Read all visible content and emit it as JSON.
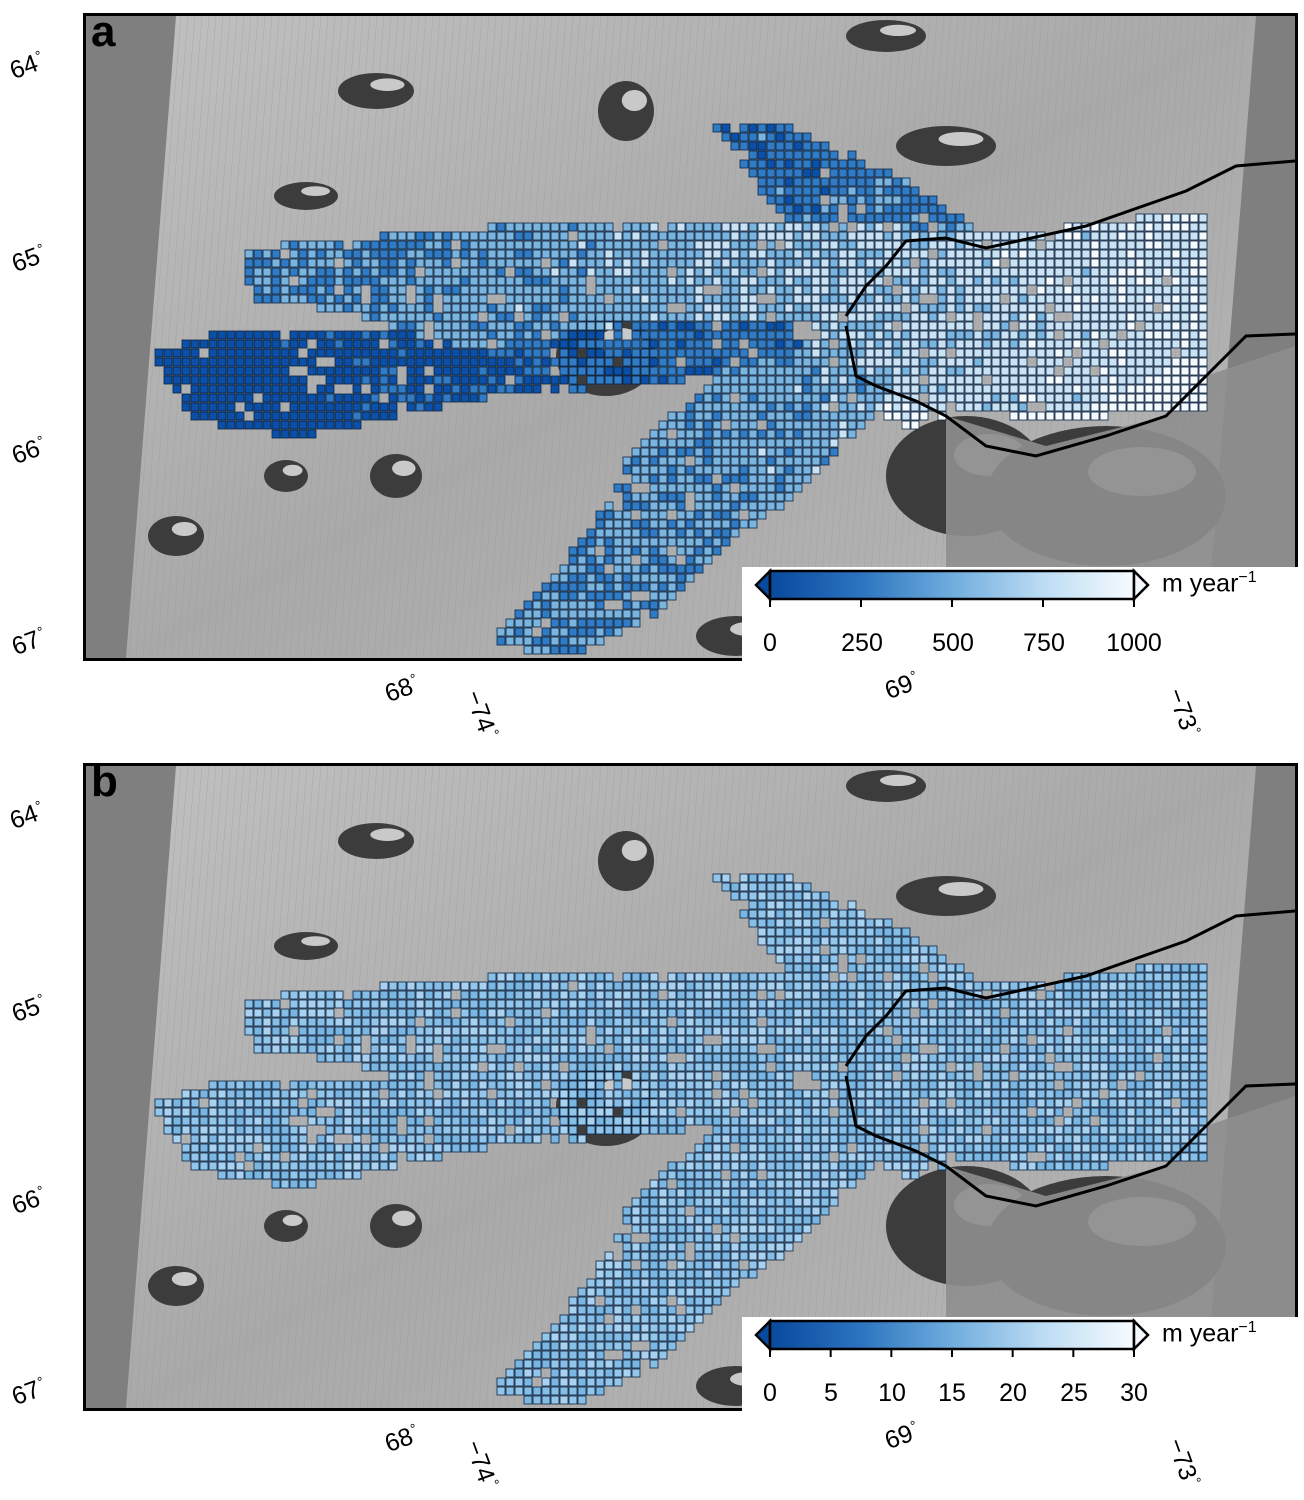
{
  "panels": [
    {
      "id": "a",
      "letter": "a",
      "palette": [
        "#0a4fa8",
        "#2f7bc6",
        "#7ab5e0",
        "#c9e3f5",
        "#f4fafe"
      ],
      "palette_rule": "velocity",
      "colorbar": {
        "ticks": [
          "0",
          "250",
          "500",
          "750",
          "1000"
        ],
        "unit": "m year",
        "unit_exponent": "−1",
        "colors": [
          "#084a9e",
          "#2c74c0",
          "#6faddd",
          "#bcdcf3",
          "#f7fbff"
        ]
      }
    },
    {
      "id": "b",
      "letter": "b",
      "palette": [
        "#86bee6",
        "#79b6e2",
        "#92c6ea",
        "#a8d2f0"
      ],
      "palette_rule": "uncertainty",
      "colorbar": {
        "ticks": [
          "0",
          "5",
          "10",
          "15",
          "20",
          "25",
          "30"
        ],
        "unit": "m year",
        "unit_exponent": "−1",
        "colors": [
          "#084a9e",
          "#2c74c0",
          "#6faddd",
          "#bcdcf3",
          "#f7fbff"
        ]
      }
    }
  ],
  "lat_labels": [
    "64",
    "65",
    "66",
    "67"
  ],
  "lon_labels_bottom": [
    "68",
    "−74",
    "69",
    "−73"
  ],
  "degree_symbol": "°"
}
